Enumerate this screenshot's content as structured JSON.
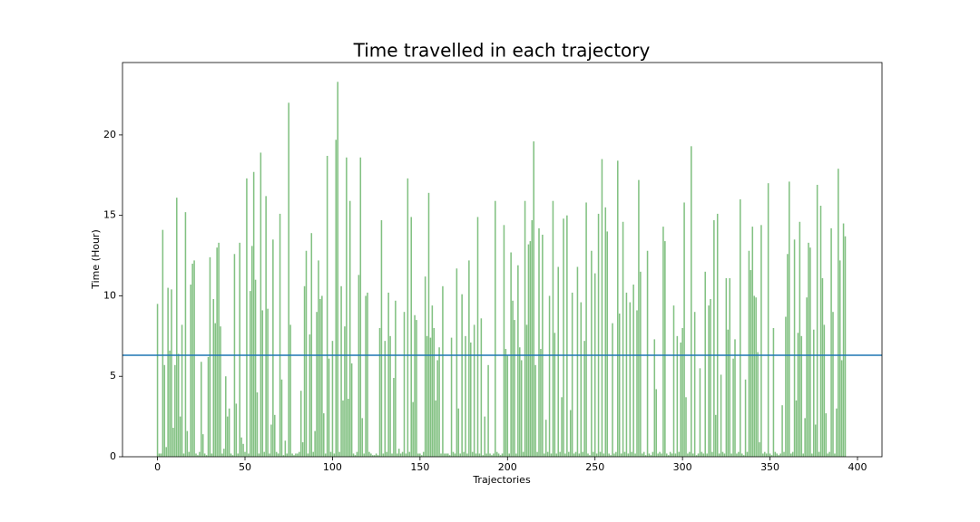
{
  "chart_data": {
    "type": "bar",
    "title": "Time travelled in each trajectory",
    "xlabel": "Trajectories",
    "ylabel": "Time (Hour)",
    "color": "#82c182",
    "hline": 6.31,
    "hline_color": "#1f77b4",
    "xlim": [
      -20,
      414
    ],
    "ylim": [
      0,
      24.5
    ],
    "xticks": [
      0,
      50,
      100,
      150,
      200,
      250,
      300,
      350,
      400
    ],
    "yticks": [
      0,
      5,
      10,
      15,
      20
    ],
    "x": [
      0,
      1,
      2,
      3,
      4,
      5,
      6,
      7,
      8,
      9,
      10,
      11,
      12,
      13,
      14,
      15,
      16,
      17,
      18,
      19,
      20,
      21,
      22,
      23,
      24,
      25,
      26,
      27,
      28,
      29,
      30,
      31,
      32,
      33,
      34,
      35,
      36,
      37,
      38,
      39,
      40,
      41,
      42,
      43,
      44,
      45,
      46,
      47,
      48,
      49,
      50,
      51,
      52,
      53,
      54,
      55,
      56,
      57,
      58,
      59,
      60,
      61,
      62,
      63,
      64,
      65,
      66,
      67,
      68,
      69,
      70,
      71,
      72,
      73,
      74,
      75,
      76,
      77,
      78,
      79,
      80,
      81,
      82,
      83,
      84,
      85,
      86,
      87,
      88,
      89,
      90,
      91,
      92,
      93,
      94,
      95,
      96,
      97,
      98,
      99,
      100,
      101,
      102,
      103,
      104,
      105,
      106,
      107,
      108,
      109,
      110,
      111,
      112,
      113,
      114,
      115,
      116,
      117,
      118,
      119,
      120,
      121,
      122,
      123,
      124,
      125,
      126,
      127,
      128,
      129,
      130,
      131,
      132,
      133,
      134,
      135,
      136,
      137,
      138,
      139,
      140,
      141,
      142,
      143,
      144,
      145,
      146,
      147,
      148,
      149,
      150,
      151,
      152,
      153,
      154,
      155,
      156,
      157,
      158,
      159,
      160,
      161,
      162,
      163,
      164,
      165,
      166,
      167,
      168,
      169,
      170,
      171,
      172,
      173,
      174,
      175,
      176,
      177,
      178,
      179,
      180,
      181,
      182,
      183,
      184,
      185,
      186,
      187,
      188,
      189,
      190,
      191,
      192,
      193,
      194,
      195,
      196,
      197,
      198,
      199,
      200,
      201,
      202,
      203,
      204,
      205,
      206,
      207,
      208,
      209,
      210,
      211,
      212,
      213,
      214,
      215,
      216,
      217,
      218,
      219,
      220,
      221,
      222,
      223,
      224,
      225,
      226,
      227,
      228,
      229,
      230,
      231,
      232,
      233,
      234,
      235,
      236,
      237,
      238,
      239,
      240,
      241,
      242,
      243,
      244,
      245,
      246,
      247,
      248,
      249,
      250,
      251,
      252,
      253,
      254,
      255,
      256,
      257,
      258,
      259,
      260,
      261,
      262,
      263,
      264,
      265,
      266,
      267,
      268,
      269,
      270,
      271,
      272,
      273,
      274,
      275,
      276,
      277,
      278,
      279,
      280,
      281,
      282,
      283,
      284,
      285,
      286,
      287,
      288,
      289,
      290,
      291,
      292,
      293,
      294,
      295,
      296,
      297,
      298,
      299,
      300,
      301,
      302,
      303,
      304,
      305,
      306,
      307,
      308,
      309,
      310,
      311,
      312,
      313,
      314,
      315,
      316,
      317,
      318,
      319,
      320,
      321,
      322,
      323,
      324,
      325,
      326,
      327,
      328,
      329,
      330,
      331,
      332,
      333,
      334,
      335,
      336,
      337,
      338,
      339,
      340,
      341,
      342,
      343,
      344,
      345,
      346,
      347,
      348,
      349,
      350,
      351,
      352,
      353,
      354,
      355,
      356,
      357,
      358,
      359,
      360,
      361,
      362,
      363,
      364,
      365,
      366,
      367,
      368,
      369,
      370,
      371,
      372,
      373,
      374,
      375,
      376,
      377,
      378,
      379,
      380,
      381,
      382,
      383,
      384,
      385,
      386,
      387,
      388,
      389,
      390,
      391,
      392,
      393
    ],
    "values": [
      9.5,
      0.2,
      0.2,
      14.1,
      5.7,
      0.6,
      10.5,
      6.6,
      10.4,
      1.8,
      5.7,
      16.1,
      6.4,
      2.5,
      8.2,
      0.2,
      15.2,
      1.6,
      0.3,
      10.7,
      12.0,
      12.2,
      0.2,
      0.1,
      0.3,
      5.9,
      1.4,
      0.2,
      0.1,
      6.2,
      12.4,
      0.2,
      9.8,
      8.3,
      13.0,
      13.3,
      8.1,
      0.2,
      0.5,
      5.0,
      2.5,
      3.0,
      0.2,
      0.1,
      12.6,
      3.3,
      0.2,
      13.3,
      1.2,
      0.8,
      0.3,
      17.3,
      0.2,
      10.3,
      13.1,
      17.7,
      11.0,
      4.0,
      0.2,
      18.9,
      9.1,
      0.3,
      16.2,
      9.2,
      0.2,
      2.0,
      13.5,
      2.6,
      0.3,
      0.2,
      15.1,
      4.8,
      0.1,
      1.0,
      0.2,
      22.0,
      8.2,
      0.2,
      0.1,
      0.2,
      0.2,
      0.3,
      4.1,
      0.9,
      10.6,
      12.8,
      0.2,
      7.6,
      13.9,
      0.3,
      1.6,
      9.0,
      12.2,
      9.8,
      10.0,
      2.7,
      0.2,
      18.7,
      6.1,
      0.3,
      7.2,
      0.2,
      19.7,
      23.3,
      0.3,
      10.6,
      3.5,
      8.1,
      18.6,
      3.6,
      15.9,
      5.8,
      0.2,
      0.1,
      0.3,
      11.3,
      18.6,
      2.4,
      0.2,
      10.0,
      10.2,
      0.3,
      0.2,
      0.1,
      0.1,
      0.2,
      0.1,
      8.0,
      14.7,
      0.2,
      7.2,
      0.3,
      10.2,
      7.5,
      0.2,
      4.9,
      9.7,
      0.2,
      0.5,
      0.2,
      0.3,
      9.0,
      0.2,
      17.3,
      0.3,
      14.9,
      3.4,
      8.8,
      8.5,
      0.2,
      0.2,
      0.1,
      0.3,
      11.2,
      7.5,
      16.4,
      7.4,
      9.4,
      8.0,
      3.5,
      6.0,
      6.8,
      0.2,
      10.6,
      0.2,
      0.2,
      0.2,
      0.1,
      7.4,
      0.3,
      0.2,
      11.7,
      3.0,
      0.2,
      10.1,
      0.3,
      7.5,
      0.2,
      12.2,
      7.1,
      0.3,
      8.2,
      0.2,
      14.9,
      0.2,
      8.6,
      0.1,
      2.5,
      0.2,
      5.7,
      0.2,
      0.1,
      0.2,
      15.9,
      0.3,
      0.2,
      0.1,
      0.2,
      14.4,
      6.7,
      6.3,
      0.2,
      12.7,
      9.7,
      8.5,
      0.2,
      11.9,
      6.8,
      6.0,
      0.3,
      15.9,
      8.2,
      13.2,
      13.4,
      14.7,
      19.6,
      5.7,
      0.3,
      14.2,
      6.7,
      13.8,
      0.2,
      2.3,
      0.3,
      10.0,
      0.2,
      15.9,
      7.7,
      0.2,
      11.8,
      0.3,
      3.7,
      14.8,
      0.2,
      15.0,
      0.3,
      2.9,
      10.2,
      0.2,
      0.3,
      11.8,
      0.2,
      9.6,
      0.3,
      7.2,
      15.8,
      0.2,
      0.1,
      12.8,
      0.3,
      11.4,
      0.2,
      15.1,
      0.3,
      18.5,
      0.2,
      15.5,
      14.0,
      0.2,
      0.1,
      8.3,
      0.2,
      0.3,
      18.4,
      8.9,
      0.2,
      14.6,
      0.3,
      10.2,
      0.2,
      9.6,
      0.3,
      10.7,
      0.2,
      9.1,
      17.2,
      11.5,
      0.2,
      0.3,
      0.1,
      12.8,
      0.2,
      0.1,
      0.3,
      7.3,
      4.2,
      0.2,
      0.3,
      0.2,
      14.3,
      13.4,
      0.2,
      0.1,
      0.3,
      0.2,
      9.4,
      0.2,
      7.5,
      0.3,
      7.1,
      8.0,
      15.8,
      3.7,
      0.2,
      0.3,
      19.3,
      0.2,
      9.0,
      0.1,
      0.2,
      5.5,
      0.3,
      0.2,
      11.5,
      0.2,
      9.4,
      9.8,
      0.3,
      14.7,
      2.6,
      15.1,
      0.2,
      5.1,
      0.3,
      0.2,
      11.1,
      7.9,
      11.1,
      0.2,
      6.1,
      7.3,
      0.2,
      0.3,
      16.0,
      0.2,
      0.1,
      4.8,
      0.3,
      12.8,
      11.6,
      14.3,
      10.0,
      9.9,
      6.5,
      0.9,
      14.4,
      0.2,
      0.3,
      0.2,
      17.0,
      0.2,
      0.1,
      8.0,
      0.3,
      0.2,
      0.1,
      0.2,
      3.2,
      0.3,
      8.7,
      12.6,
      17.1,
      0.2,
      0.3,
      13.5,
      3.5,
      7.7,
      14.6,
      7.5,
      0.2,
      2.4,
      9.9,
      13.3,
      13.0,
      0.2,
      7.9,
      2.0,
      16.9,
      0.3,
      15.6,
      11.1,
      8.2,
      2.7,
      0.2,
      0.3,
      14.2,
      9.0,
      0.2,
      3.0,
      17.9,
      12.2,
      6.0,
      14.5,
      13.7
    ]
  }
}
